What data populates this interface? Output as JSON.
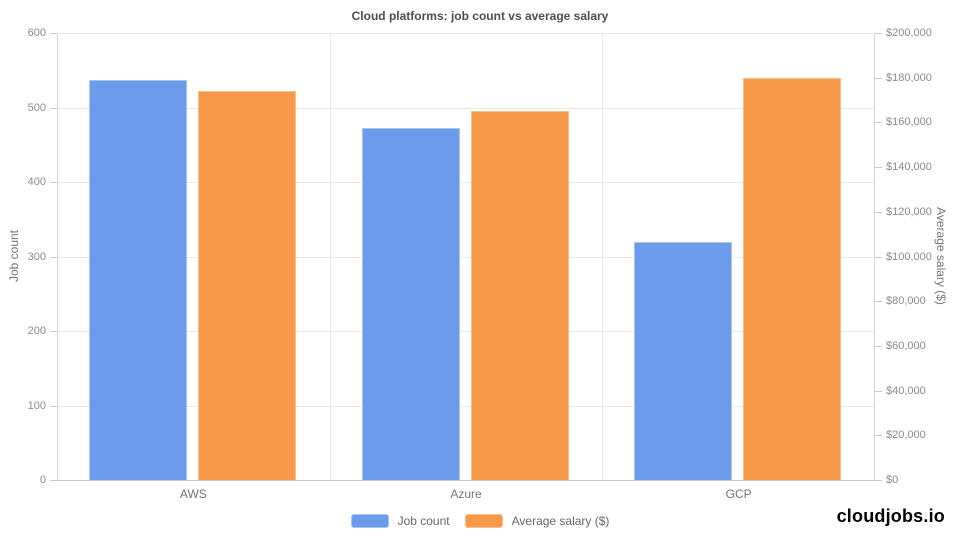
{
  "title": "Cloud platforms: job count vs average salary",
  "brand": "cloudjobs.io",
  "colors": {
    "blue_fill": "#6D9BEB",
    "blue_border": "#A8C5F0",
    "orange_fill": "#F8994A",
    "orange_border": "#FABE8C",
    "gridline": "#e8e8e8",
    "axis_line": "#c9c9c9",
    "tick_text": "#8a8a8a",
    "label_text": "#757575",
    "title_text": "#4d4d4d",
    "legend_text": "#666666"
  },
  "chart_data": {
    "type": "bar",
    "categories": [
      "AWS",
      "Azure",
      "GCP"
    ],
    "series": [
      {
        "name": "Job count",
        "axis": "left",
        "color": "#6D9BEB",
        "border_color": "#A8C5F0",
        "values": [
          537,
          472,
          319
        ]
      },
      {
        "name": "Average salary ($)",
        "axis": "right",
        "color": "#F8994A",
        "border_color": "#FABE8C",
        "values": [
          174000,
          165000,
          180000
        ]
      }
    ],
    "left_axis": {
      "title": "Job count",
      "min": 0,
      "max": 600,
      "tick_step": 100,
      "tick_labels": [
        "0",
        "100",
        "200",
        "300",
        "400",
        "500",
        "600"
      ]
    },
    "right_axis": {
      "title": "Average salary ($)",
      "min": 0,
      "max": 200000,
      "tick_step": 20000,
      "tick_labels": [
        "$0",
        "$20,000",
        "$40,000",
        "$60,000",
        "$80,000",
        "$100,000",
        "$120,000",
        "$140,000",
        "$160,000",
        "$180,000",
        "$200,000"
      ]
    },
    "legend": {
      "position": "bottom",
      "items": [
        "Job count",
        "Average salary ($)"
      ]
    },
    "grid": true
  }
}
